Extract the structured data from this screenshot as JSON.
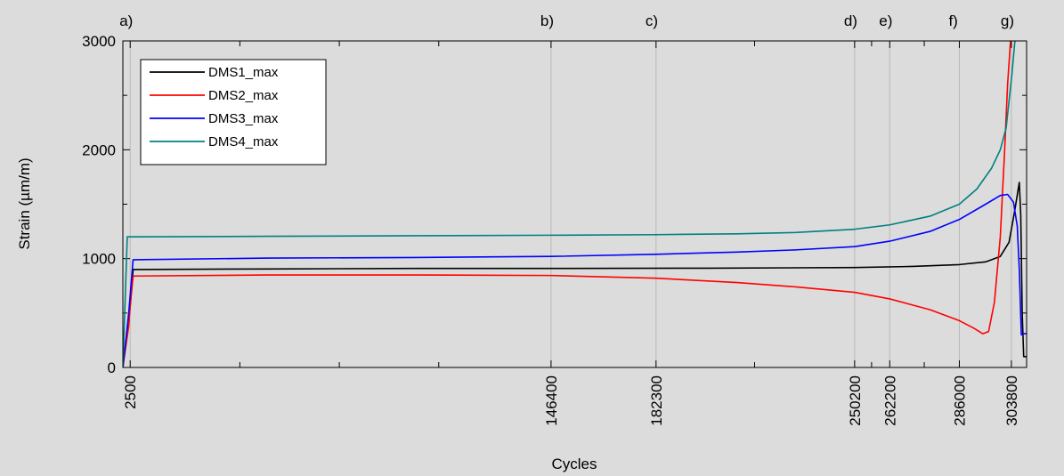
{
  "chart_data": {
    "type": "line",
    "xlabel": "Cycles",
    "ylabel": "Strain (µm/m)",
    "xlim": [
      0,
      309000
    ],
    "ylim": [
      0,
      3000
    ],
    "y_ticks": [
      0,
      1000,
      2000,
      3000
    ],
    "x_ticks": [
      2500,
      146400,
      182300,
      250200,
      262200,
      286000,
      303800
    ],
    "minor_x_ticks": [
      40000,
      74000,
      108000,
      216000,
      256000,
      274000
    ],
    "phase_markers": [
      {
        "label": "a)",
        "x": 2500
      },
      {
        "label": "b)",
        "x": 146400
      },
      {
        "label": "c)",
        "x": 182300
      },
      {
        "label": "d)",
        "x": 250200
      },
      {
        "label": "e)",
        "x": 262200
      },
      {
        "label": "f)",
        "x": 286000
      },
      {
        "label": "g)",
        "x": 303800
      }
    ],
    "legend_position": "top-left",
    "grid": false,
    "series": [
      {
        "name": "DMS1_max",
        "color": "#000000",
        "points": [
          [
            0,
            0
          ],
          [
            2500,
            560
          ],
          [
            3500,
            900
          ],
          [
            50000,
            905
          ],
          [
            100000,
            910
          ],
          [
            150000,
            910
          ],
          [
            200000,
            912
          ],
          [
            250000,
            918
          ],
          [
            270000,
            928
          ],
          [
            286000,
            945
          ],
          [
            295000,
            970
          ],
          [
            300000,
            1020
          ],
          [
            303000,
            1150
          ],
          [
            305000,
            1450
          ],
          [
            306500,
            1700
          ],
          [
            307000,
            1400
          ],
          [
            307500,
            500
          ],
          [
            308000,
            100
          ],
          [
            309000,
            100
          ]
        ]
      },
      {
        "name": "DMS2_max",
        "color": "#ff0000",
        "points": [
          [
            0,
            0
          ],
          [
            2000,
            380
          ],
          [
            2500,
            560
          ],
          [
            3500,
            840
          ],
          [
            50000,
            850
          ],
          [
            100000,
            850
          ],
          [
            146400,
            845
          ],
          [
            182300,
            820
          ],
          [
            210000,
            780
          ],
          [
            230000,
            740
          ],
          [
            250200,
            690
          ],
          [
            262200,
            630
          ],
          [
            276000,
            530
          ],
          [
            286000,
            430
          ],
          [
            291000,
            360
          ],
          [
            294000,
            310
          ],
          [
            296000,
            330
          ],
          [
            298000,
            600
          ],
          [
            300000,
            1200
          ],
          [
            301500,
            2000
          ],
          [
            302500,
            2600
          ],
          [
            303500,
            3000
          ]
        ]
      },
      {
        "name": "DMS3_max",
        "color": "#0000ff",
        "points": [
          [
            0,
            0
          ],
          [
            2000,
            500
          ],
          [
            3500,
            990
          ],
          [
            50000,
            1005
          ],
          [
            100000,
            1010
          ],
          [
            146400,
            1020
          ],
          [
            182300,
            1040
          ],
          [
            210000,
            1060
          ],
          [
            230000,
            1080
          ],
          [
            250200,
            1110
          ],
          [
            262200,
            1160
          ],
          [
            276000,
            1250
          ],
          [
            286000,
            1360
          ],
          [
            295000,
            1500
          ],
          [
            300000,
            1580
          ],
          [
            302500,
            1590
          ],
          [
            304500,
            1520
          ],
          [
            305800,
            1300
          ],
          [
            306500,
            900
          ],
          [
            307200,
            300
          ],
          [
            308000,
            310
          ],
          [
            309000,
            310
          ]
        ]
      },
      {
        "name": "DMS4_max",
        "color": "#008080",
        "points": [
          [
            0,
            0
          ],
          [
            1500,
            1200
          ],
          [
            3500,
            1200
          ],
          [
            50000,
            1205
          ],
          [
            100000,
            1210
          ],
          [
            146400,
            1215
          ],
          [
            182300,
            1220
          ],
          [
            210000,
            1228
          ],
          [
            230000,
            1240
          ],
          [
            250200,
            1270
          ],
          [
            262200,
            1310
          ],
          [
            276000,
            1390
          ],
          [
            286000,
            1500
          ],
          [
            292000,
            1640
          ],
          [
            297000,
            1830
          ],
          [
            300000,
            2000
          ],
          [
            302000,
            2200
          ],
          [
            304000,
            2700
          ],
          [
            305000,
            3000
          ]
        ]
      }
    ]
  }
}
